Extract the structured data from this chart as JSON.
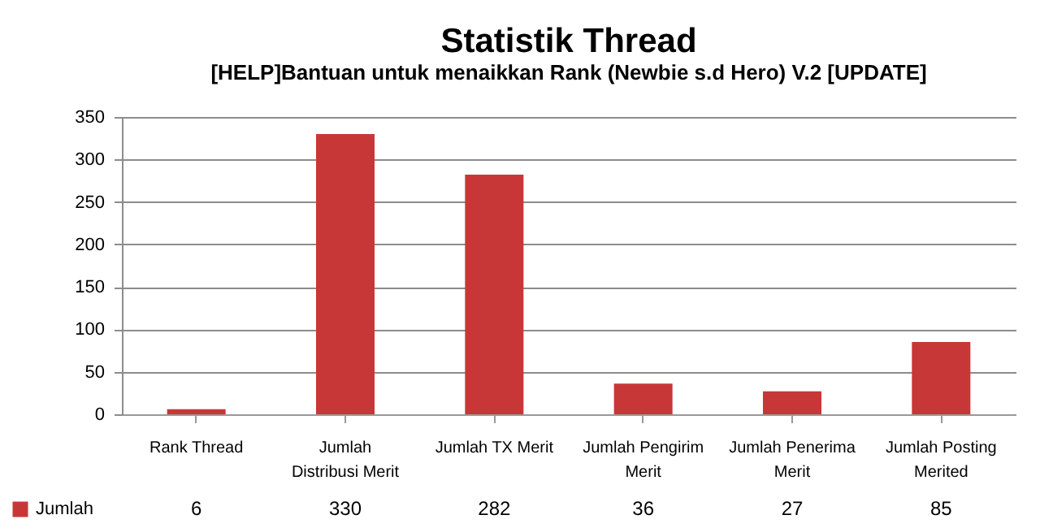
{
  "chart_data": {
    "type": "bar",
    "title": "Statistik Thread",
    "subtitle": "[HELP]Bantuan untuk menaikkan Rank (Newbie s.d Hero) V.2 [UPDATE]",
    "categories": [
      "Rank Thread",
      "Jumlah Distribusi Merit",
      "Jumlah TX Merit",
      "Jumlah Pengirim Merit",
      "Jumlah Penerima Merit",
      "Jumlah Posting Merited"
    ],
    "series": [
      {
        "name": "Jumlah",
        "color": "#c83737",
        "values": [
          6,
          330,
          282,
          36,
          27,
          85
        ]
      }
    ],
    "ylim": [
      0,
      350
    ],
    "yticks": [
      0,
      50,
      100,
      150,
      200,
      250,
      300,
      350
    ],
    "grid": "y",
    "data_labels": true,
    "legend": "bottom left"
  }
}
